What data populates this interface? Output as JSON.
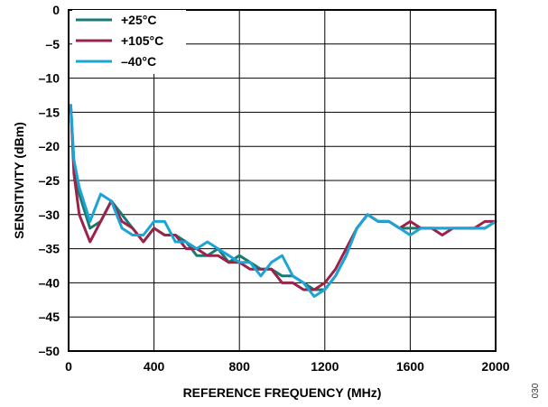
{
  "figure_id": "030",
  "chart_data": {
    "type": "line",
    "title": "",
    "xlabel": "REFERENCE FREQUENCY (MHz)",
    "ylabel": "SENSITIVITY (dBm)",
    "xlim": [
      0,
      2000
    ],
    "ylim": [
      -50,
      0
    ],
    "xticks": [
      0,
      400,
      800,
      1200,
      1600,
      2000
    ],
    "xtick_labels": [
      "0",
      "400",
      "800",
      "1200",
      "1600",
      "2000"
    ],
    "yticks": [
      0,
      -5,
      -10,
      -15,
      -20,
      -25,
      -30,
      -35,
      -40,
      -45,
      -50
    ],
    "ytick_labels": [
      "0",
      "–5",
      "–10",
      "–15",
      "–20",
      "–25",
      "–30",
      "–35",
      "–40",
      "–45",
      "–50"
    ],
    "grid": true,
    "legend_position": "top-left",
    "series": [
      {
        "name": "+25°C",
        "color": "#1a7a72",
        "x": [
          10,
          25,
          50,
          100,
          150,
          200,
          250,
          300,
          350,
          400,
          450,
          500,
          550,
          600,
          650,
          700,
          750,
          800,
          850,
          900,
          950,
          1000,
          1050,
          1100,
          1150,
          1200,
          1250,
          1300,
          1350,
          1400,
          1450,
          1500,
          1550,
          1600,
          1650,
          1700,
          1750,
          1800,
          1850,
          1900,
          1950,
          2000
        ],
        "y": [
          -14,
          -23,
          -27,
          -32,
          -31,
          -28,
          -30,
          -32,
          -34,
          -32,
          -33,
          -33,
          -34,
          -36,
          -36,
          -35,
          -37,
          -36,
          -37,
          -38,
          -38,
          -39,
          -39,
          -40,
          -41,
          -41,
          -39,
          -36,
          -32,
          -30,
          -31,
          -31,
          -32,
          -32,
          -32,
          -32,
          -32,
          -32,
          -32,
          -32,
          -32,
          -31
        ]
      },
      {
        "name": "+105°C",
        "color": "#9b2248",
        "x": [
          10,
          25,
          50,
          100,
          150,
          200,
          250,
          300,
          350,
          400,
          450,
          500,
          550,
          600,
          650,
          700,
          750,
          800,
          850,
          900,
          950,
          1000,
          1050,
          1100,
          1150,
          1200,
          1250,
          1300,
          1350,
          1400,
          1450,
          1500,
          1550,
          1600,
          1650,
          1700,
          1750,
          1800,
          1850,
          1900,
          1950,
          2000
        ],
        "y": [
          -14,
          -24,
          -30,
          -34,
          -31,
          -28,
          -31,
          -32,
          -34,
          -32,
          -33,
          -33,
          -35,
          -35,
          -36,
          -36,
          -37,
          -37,
          -38,
          -38,
          -38,
          -40,
          -40,
          -41,
          -41,
          -40,
          -38,
          -35,
          -32,
          -30,
          -31,
          -31,
          -32,
          -31,
          -32,
          -32,
          -33,
          -32,
          -32,
          -32,
          -31,
          -31
        ]
      },
      {
        "name": "–40°C",
        "color": "#1ea3d6",
        "x": [
          10,
          25,
          50,
          100,
          150,
          200,
          250,
          300,
          350,
          400,
          450,
          500,
          550,
          600,
          650,
          700,
          750,
          800,
          850,
          900,
          950,
          1000,
          1050,
          1100,
          1150,
          1200,
          1250,
          1300,
          1350,
          1400,
          1450,
          1500,
          1550,
          1600,
          1650,
          1700,
          1750,
          1800,
          1850,
          1900,
          1950,
          2000
        ],
        "y": [
          -14,
          -22,
          -26,
          -31,
          -27,
          -28,
          -32,
          -33,
          -33,
          -31,
          -31,
          -34,
          -34,
          -35,
          -34,
          -35,
          -36,
          -37,
          -37,
          -39,
          -37,
          -36,
          -39,
          -40,
          -42,
          -41,
          -39,
          -36,
          -32,
          -30,
          -31,
          -31,
          -32,
          -33,
          -32,
          -32,
          -32,
          -32,
          -32,
          -32,
          -32,
          -31
        ]
      }
    ]
  }
}
